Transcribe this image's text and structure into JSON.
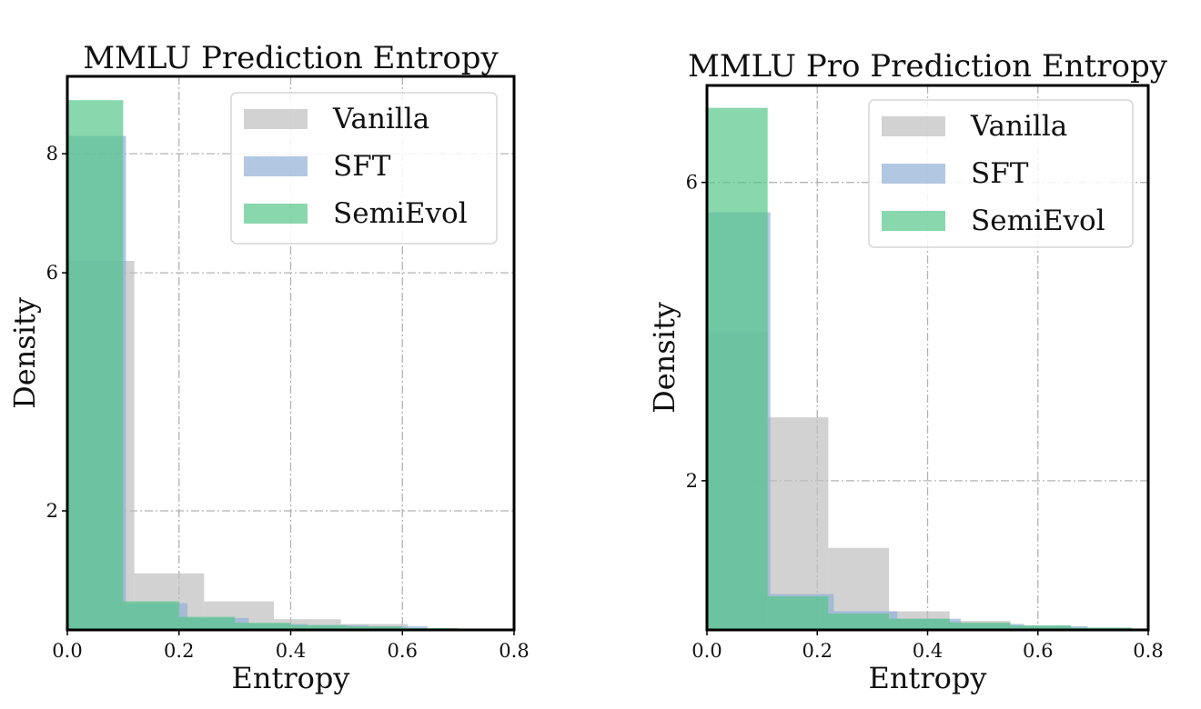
{
  "chart_data": [
    {
      "type": "bar",
      "title": "MMLU Prediction Entropy",
      "xlabel": "Entropy",
      "ylabel": "Density",
      "xlim": [
        0.0,
        0.8
      ],
      "ylim": [
        0,
        9.3
      ],
      "xticks": [
        0.0,
        0.2,
        0.4,
        0.6,
        0.8
      ],
      "xtick_labels": [
        "0.0",
        "0.2",
        "0.4",
        "0.6",
        "0.8"
      ],
      "yticks": [
        2,
        6,
        8
      ],
      "ytick_labels": [
        "2",
        "6",
        "8"
      ],
      "grid": true,
      "legend": "top-right",
      "series": [
        {
          "name": "Vanilla",
          "color": "#bfbfbf",
          "bins": [
            [
              0.0,
              0.12,
              6.2
            ],
            [
              0.12,
              0.245,
              0.95
            ],
            [
              0.245,
              0.37,
              0.48
            ],
            [
              0.37,
              0.49,
              0.18
            ],
            [
              0.49,
              0.61,
              0.1
            ],
            [
              0.61,
              0.73,
              0.02
            ]
          ]
        },
        {
          "name": "SFT",
          "color": "#92b1d6",
          "bins": [
            [
              0.0,
              0.105,
              8.3
            ],
            [
              0.105,
              0.215,
              0.45
            ],
            [
              0.215,
              0.325,
              0.2
            ],
            [
              0.325,
              0.43,
              0.1
            ],
            [
              0.43,
              0.54,
              0.08
            ],
            [
              0.54,
              0.645,
              0.06
            ]
          ]
        },
        {
          "name": "SemiEvol",
          "color": "#55c68a",
          "bins": [
            [
              0.0,
              0.1,
              8.9
            ],
            [
              0.1,
              0.2,
              0.48
            ],
            [
              0.2,
              0.3,
              0.22
            ],
            [
              0.3,
              0.4,
              0.12
            ],
            [
              0.4,
              0.5,
              0.08
            ],
            [
              0.5,
              0.6,
              0.06
            ],
            [
              0.6,
              0.7,
              0.03
            ],
            [
              0.7,
              0.8,
              0.01
            ]
          ]
        }
      ]
    },
    {
      "type": "bar",
      "title": "MMLU Pro Prediction Entropy",
      "xlabel": "Entropy",
      "ylabel": "Density",
      "xlim": [
        0.0,
        0.8
      ],
      "ylim": [
        0,
        7.3
      ],
      "xticks": [
        0.0,
        0.2,
        0.4,
        0.6,
        0.8
      ],
      "xtick_labels": [
        "0.0",
        "0.2",
        "0.4",
        "0.6",
        "0.8"
      ],
      "yticks": [
        2,
        6
      ],
      "ytick_labels": [
        "2",
        "6"
      ],
      "grid": true,
      "legend": "top-right",
      "series": [
        {
          "name": "Vanilla",
          "color": "#bfbfbf",
          "bins": [
            [
              0.0,
              0.11,
              4.0
            ],
            [
              0.11,
              0.22,
              2.85
            ],
            [
              0.22,
              0.33,
              1.1
            ],
            [
              0.33,
              0.44,
              0.25
            ],
            [
              0.44,
              0.55,
              0.12
            ],
            [
              0.55,
              0.66,
              0.06
            ],
            [
              0.66,
              0.77,
              0.03
            ]
          ]
        },
        {
          "name": "SFT",
          "color": "#92b1d6",
          "bins": [
            [
              0.0,
              0.115,
              5.6
            ],
            [
              0.115,
              0.23,
              0.48
            ],
            [
              0.23,
              0.345,
              0.25
            ],
            [
              0.345,
              0.46,
              0.15
            ],
            [
              0.46,
              0.575,
              0.08
            ],
            [
              0.575,
              0.69,
              0.05
            ],
            [
              0.69,
              0.8,
              0.02
            ]
          ]
        },
        {
          "name": "SemiEvol",
          "color": "#55c68a",
          "bins": [
            [
              0.0,
              0.11,
              7.0
            ],
            [
              0.11,
              0.22,
              0.45
            ],
            [
              0.22,
              0.33,
              0.22
            ],
            [
              0.33,
              0.44,
              0.15
            ],
            [
              0.44,
              0.55,
              0.1
            ],
            [
              0.55,
              0.66,
              0.06
            ],
            [
              0.66,
              0.77,
              0.03
            ]
          ]
        }
      ]
    }
  ]
}
